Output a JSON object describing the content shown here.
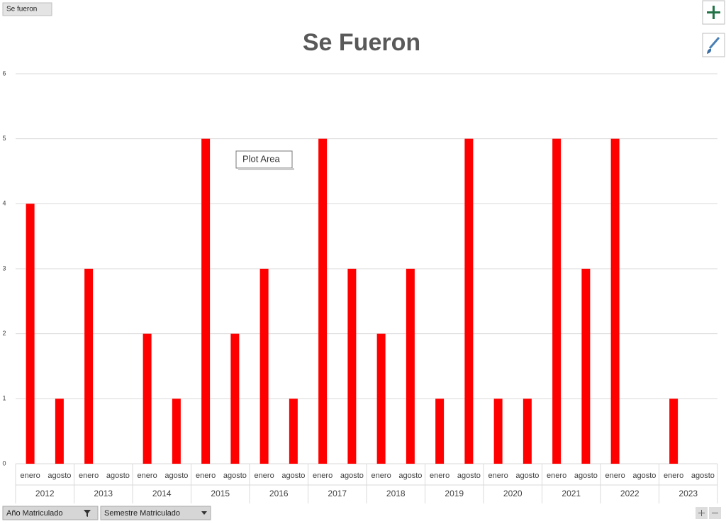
{
  "chart_button": "Se fueron",
  "tooltip": "Plot Area",
  "field_buttons": [
    "Año Matriculado",
    "Semestre Matriculado"
  ],
  "chart_data": {
    "type": "bar",
    "title": "Se Fueron",
    "groups": [
      "2012",
      "2013",
      "2014",
      "2015",
      "2016",
      "2017",
      "2018",
      "2019",
      "2020",
      "2021",
      "2022",
      "2023"
    ],
    "categories": [
      "enero",
      "agosto",
      "enero",
      "agosto",
      "enero",
      "agosto",
      "enero",
      "agosto",
      "enero",
      "agosto",
      "enero",
      "agosto",
      "enero",
      "agosto",
      "enero",
      "agosto",
      "enero",
      "agosto",
      "enero",
      "agosto",
      "enero",
      "agosto",
      "enero",
      "agosto"
    ],
    "values": [
      4,
      1,
      3,
      null,
      2,
      1,
      5,
      2,
      3,
      1,
      5,
      3,
      2,
      3,
      1,
      5,
      1,
      1,
      5,
      3,
      5,
      null,
      1,
      null
    ],
    "color": "#ff0000",
    "ylim": [
      0,
      6
    ],
    "yticks": [
      0,
      1,
      2,
      3,
      4,
      5,
      6
    ],
    "grid": true
  }
}
